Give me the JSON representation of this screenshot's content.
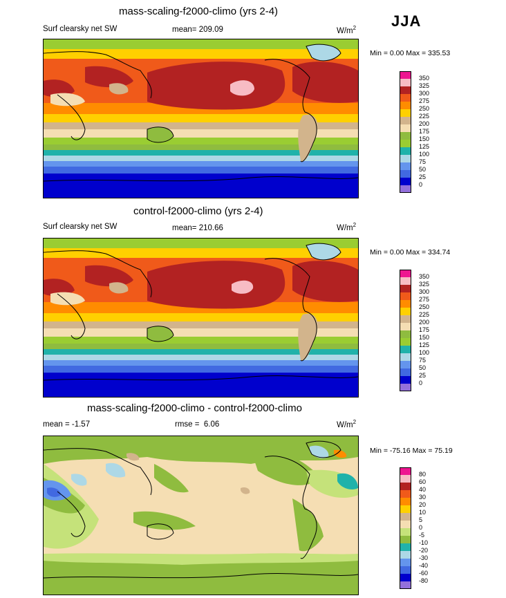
{
  "season": "JJA",
  "panels": [
    {
      "title": "mass-scaling-f2000-climo (yrs 2-4)",
      "left_label": "Surf clearsky net SW",
      "stat_label": "mean=",
      "stat_value": "209.09",
      "units": "W/m",
      "units_sup": "2",
      "minmax": "Min =   0.00 Max = 335.53"
    },
    {
      "title": "control-f2000-climo (yrs 2-4)",
      "left_label": "Surf clearsky net SW",
      "stat_label": "mean=",
      "stat_value": "210.66",
      "units": "W/m",
      "units_sup": "2",
      "minmax": "Min =   0.00 Max = 334.74"
    },
    {
      "title": "mass-scaling-f2000-climo - control-f2000-climo",
      "left_label": "mean =  -1.57",
      "stat_label": "rmse =",
      "stat_value": "6.06",
      "units": "W/m",
      "units_sup": "2",
      "minmax": "Min = -75.16 Max =  75.19"
    }
  ],
  "chart_data": [
    {
      "type": "heatmap",
      "title": "mass-scaling-f2000-climo (yrs 2-4)",
      "variable": "Surf clearsky net SW",
      "mean": 209.09,
      "min": 0.0,
      "max": 335.53,
      "levels": [
        "350",
        "325",
        "300",
        "275",
        "250",
        "225",
        "200",
        "175",
        "150",
        "125",
        "100",
        "75",
        "50",
        "25",
        "0"
      ],
      "colors": [
        "#ee1590",
        "#f7bcc4",
        "#b22222",
        "#f05a1a",
        "#ff8c00",
        "#ffd000",
        "#d2b48c",
        "#f5deb3",
        "#8fbc3f",
        "#9acd32",
        "#20b2aa",
        "#add8e6",
        "#6495ed",
        "#4169e1",
        "#0000cd",
        "#9370db"
      ]
    },
    {
      "type": "heatmap",
      "title": "control-f2000-climo (yrs 2-4)",
      "variable": "Surf clearsky net SW",
      "mean": 210.66,
      "min": 0.0,
      "max": 334.74,
      "levels": [
        "350",
        "325",
        "300",
        "275",
        "250",
        "225",
        "200",
        "175",
        "150",
        "125",
        "100",
        "75",
        "50",
        "25",
        "0"
      ],
      "colors": [
        "#ee1590",
        "#f7bcc4",
        "#b22222",
        "#f05a1a",
        "#ff8c00",
        "#ffd000",
        "#d2b48c",
        "#f5deb3",
        "#8fbc3f",
        "#9acd32",
        "#20b2aa",
        "#add8e6",
        "#6495ed",
        "#4169e1",
        "#0000cd",
        "#9370db"
      ]
    },
    {
      "type": "heatmap",
      "title": "mass-scaling-f2000-climo - control-f2000-climo",
      "mean": -1.57,
      "rmse": 6.06,
      "min": -75.16,
      "max": 75.19,
      "levels": [
        "80",
        "60",
        "40",
        "30",
        "20",
        "10",
        "5",
        "0",
        "-5",
        "-10",
        "-20",
        "-30",
        "-40",
        "-60",
        "-80"
      ],
      "colors": [
        "#ee1590",
        "#f7bcc4",
        "#b22222",
        "#f05a1a",
        "#ff8c00",
        "#ffd000",
        "#d2b48c",
        "#f5deb3",
        "#c5e27a",
        "#8fbc3f",
        "#20b2aa",
        "#add8e6",
        "#6495ed",
        "#4169e1",
        "#0000cd",
        "#9370db"
      ]
    }
  ]
}
